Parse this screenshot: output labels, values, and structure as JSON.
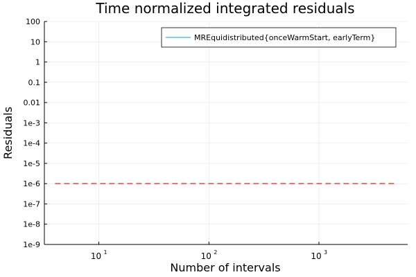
{
  "chart_data": {
    "type": "line",
    "title": "Time normalized integrated residuals",
    "xlabel": "Number of intervals",
    "ylabel": "Residuals",
    "xscale": "log",
    "yscale": "log",
    "xlim": [
      3.2,
      6400
    ],
    "ylim": [
      1e-09,
      100
    ],
    "grid": true,
    "legend_position": "top-right",
    "x_ticks": [
      {
        "value": 10,
        "base": "10",
        "exp": "1"
      },
      {
        "value": 100,
        "base": "10",
        "exp": "2"
      },
      {
        "value": 1000,
        "base": "10",
        "exp": "3"
      }
    ],
    "y_ticks": [
      {
        "value": 100,
        "label": "100"
      },
      {
        "value": 10,
        "label": "10"
      },
      {
        "value": 1,
        "label": "1"
      },
      {
        "value": 0.1,
        "label": "0.1"
      },
      {
        "value": 0.01,
        "label": "0.01"
      },
      {
        "value": 0.001,
        "label": "1e-3"
      },
      {
        "value": 0.0001,
        "label": "1e-4"
      },
      {
        "value": 1e-05,
        "label": "1e-5"
      },
      {
        "value": 1e-06,
        "label": "1e-6"
      },
      {
        "value": 1e-07,
        "label": "1e-7"
      },
      {
        "value": 1e-08,
        "label": "1e-8"
      },
      {
        "value": 1e-09,
        "label": "1e-9"
      }
    ],
    "series": [
      {
        "name": "MREquidistributed{onceWarmStart, earlyTerm}",
        "color": "#009AFA",
        "x": [],
        "y": []
      }
    ],
    "reference_lines": [
      {
        "y": 1e-06,
        "x_range": [
          4,
          5120
        ],
        "color": "#E26F6F",
        "style": "dashed"
      }
    ]
  }
}
